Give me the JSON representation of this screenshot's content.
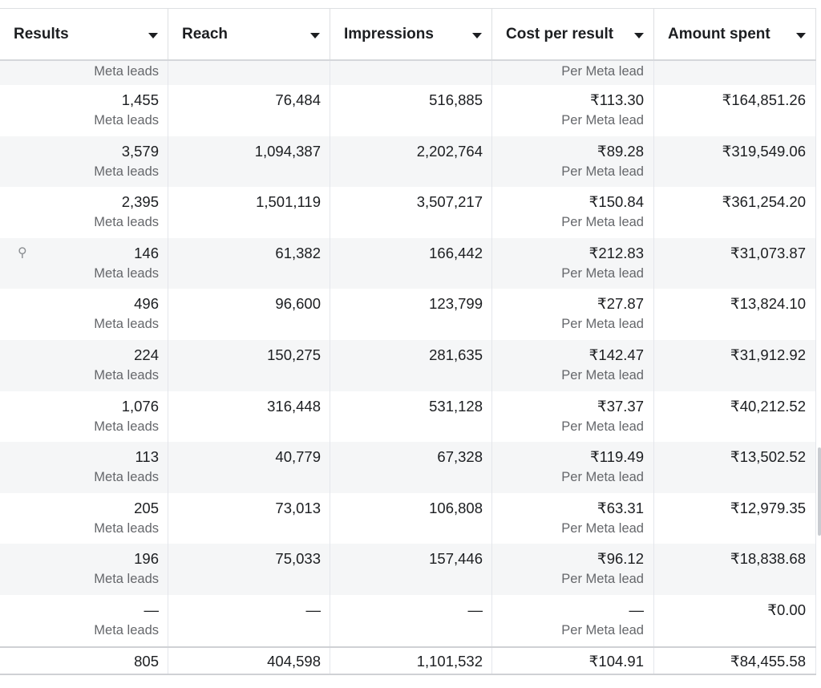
{
  "table": {
    "columns": [
      {
        "label": "Results"
      },
      {
        "label": "Reach"
      },
      {
        "label": "Impressions"
      },
      {
        "label": "Cost per result"
      },
      {
        "label": "Amount spent"
      }
    ],
    "partial_row": {
      "results_sub": "Meta leads",
      "cost_sub": "Per Meta lead"
    },
    "rows": [
      {
        "results": "1,455",
        "results_sub": "Meta leads",
        "reach": "76,484",
        "impressions": "516,885",
        "cost": "₹113.30",
        "cost_sub": "Per Meta lead",
        "spent": "₹164,851.26"
      },
      {
        "results": "3,579",
        "results_sub": "Meta leads",
        "reach": "1,094,387",
        "impressions": "2,202,764",
        "cost": "₹89.28",
        "cost_sub": "Per Meta lead",
        "spent": "₹319,549.06"
      },
      {
        "results": "2,395",
        "results_sub": "Meta leads",
        "reach": "1,501,119",
        "impressions": "3,507,217",
        "cost": "₹150.84",
        "cost_sub": "Per Meta lead",
        "spent": "₹361,254.20"
      },
      {
        "results": "146",
        "results_sub": "Meta leads",
        "reach": "61,382",
        "impressions": "166,442",
        "cost": "₹212.83",
        "cost_sub": "Per Meta lead",
        "spent": "₹31,073.87",
        "pin": "⚲"
      },
      {
        "results": "496",
        "results_sub": "Meta leads",
        "reach": "96,600",
        "impressions": "123,799",
        "cost": "₹27.87",
        "cost_sub": "Per Meta lead",
        "spent": "₹13,824.10"
      },
      {
        "results": "224",
        "results_sub": "Meta leads",
        "reach": "150,275",
        "impressions": "281,635",
        "cost": "₹142.47",
        "cost_sub": "Per Meta lead",
        "spent": "₹31,912.92"
      },
      {
        "results": "1,076",
        "results_sub": "Meta leads",
        "reach": "316,448",
        "impressions": "531,128",
        "cost": "₹37.37",
        "cost_sub": "Per Meta lead",
        "spent": "₹40,212.52"
      },
      {
        "results": "113",
        "results_sub": "Meta leads",
        "reach": "40,779",
        "impressions": "67,328",
        "cost": "₹119.49",
        "cost_sub": "Per Meta lead",
        "spent": "₹13,502.52"
      },
      {
        "results": "205",
        "results_sub": "Meta leads",
        "reach": "73,013",
        "impressions": "106,808",
        "cost": "₹63.31",
        "cost_sub": "Per Meta lead",
        "spent": "₹12,979.35"
      },
      {
        "results": "196",
        "results_sub": "Meta leads",
        "reach": "75,033",
        "impressions": "157,446",
        "cost": "₹96.12",
        "cost_sub": "Per Meta lead",
        "spent": "₹18,838.68"
      },
      {
        "results": "—",
        "results_sub": "Meta leads",
        "reach": "—",
        "impressions": "—",
        "cost": "—",
        "cost_sub": "Per Meta lead",
        "spent": "₹0.00"
      }
    ],
    "totals": {
      "results": "805",
      "reach": "404,598",
      "impressions": "1,101,532",
      "cost": "₹104.91",
      "spent": "₹84,455.58"
    }
  }
}
